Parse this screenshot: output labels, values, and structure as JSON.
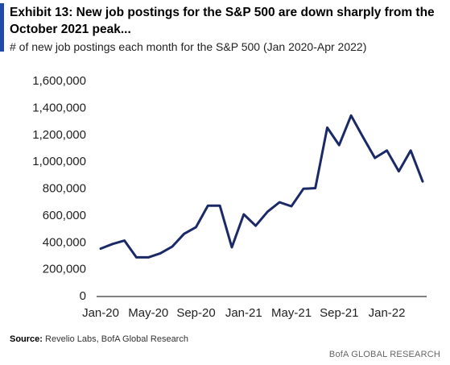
{
  "title": "Exhibit 13: New job postings for the S&P 500 are down sharply from the October 2021 peak...",
  "subtitle": "# of new job postings each month for the S&P 500 (Jan 2020-Apr 2022)",
  "source_label": "Source:",
  "source_text": "Revelio Labs, BofA Global Research",
  "brand": "BofA GLOBAL RESEARCH",
  "colors": {
    "line": "#1b2a66",
    "accent": "#1f4aa8"
  },
  "chart_data": {
    "type": "line",
    "title": "Exhibit 13: New job postings for the S&P 500 are down sharply from the October 2021 peak...",
    "xlabel": "",
    "ylabel": "",
    "ylim": [
      0,
      1600000
    ],
    "yticks": [
      0,
      200000,
      400000,
      600000,
      800000,
      1000000,
      1200000,
      1400000,
      1600000
    ],
    "ytick_labels": [
      "0",
      "200,000",
      "400,000",
      "600,000",
      "800,000",
      "1,000,000",
      "1,200,000",
      "1,400,000",
      "1,600,000"
    ],
    "xtick_labels": [
      "Jan-20",
      "May-20",
      "Sep-20",
      "Jan-21",
      "May-21",
      "Sep-21",
      "Jan-22"
    ],
    "xtick_months": [
      "2020-01",
      "2020-05",
      "2020-09",
      "2021-01",
      "2021-05",
      "2021-09",
      "2022-01"
    ],
    "grid": false,
    "legend": "none",
    "x": [
      "2020-01",
      "2020-02",
      "2020-03",
      "2020-04",
      "2020-05",
      "2020-06",
      "2020-07",
      "2020-08",
      "2020-09",
      "2020-10",
      "2020-11",
      "2020-12",
      "2021-01",
      "2021-02",
      "2021-03",
      "2021-04",
      "2021-05",
      "2021-06",
      "2021-07",
      "2021-08",
      "2021-09",
      "2021-10",
      "2021-11",
      "2021-12",
      "2022-01",
      "2022-02",
      "2022-03",
      "2022-04"
    ],
    "values": [
      350000,
      385000,
      410000,
      285000,
      285000,
      315000,
      365000,
      460000,
      510000,
      670000,
      670000,
      360000,
      605000,
      520000,
      625000,
      695000,
      665000,
      795000,
      800000,
      1250000,
      1120000,
      1340000,
      1180000,
      1025000,
      1080000,
      925000,
      1080000,
      850000
    ]
  }
}
